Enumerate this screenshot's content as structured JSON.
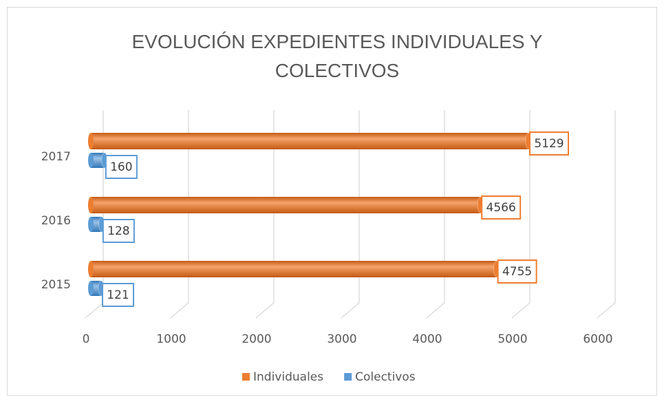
{
  "chart_data": {
    "type": "bar",
    "orientation": "horizontal",
    "title": "EVOLUCIÓN   EXPEDIENTES INDIVIDUALES Y COLECTIVOS",
    "categories": [
      "2015",
      "2016",
      "2017"
    ],
    "series": [
      {
        "name": "Individuales",
        "color": "#ED7D31",
        "values": [
          4755,
          4566,
          5129
        ]
      },
      {
        "name": "Colectivos",
        "color": "#5B9BD5",
        "values": [
          121,
          128,
          160
        ]
      }
    ],
    "xlim": [
      0,
      6000
    ],
    "xticks": [
      0,
      1000,
      2000,
      3000,
      4000,
      5000,
      6000
    ],
    "grid": true,
    "legend": "bottom",
    "data_labels": true
  }
}
